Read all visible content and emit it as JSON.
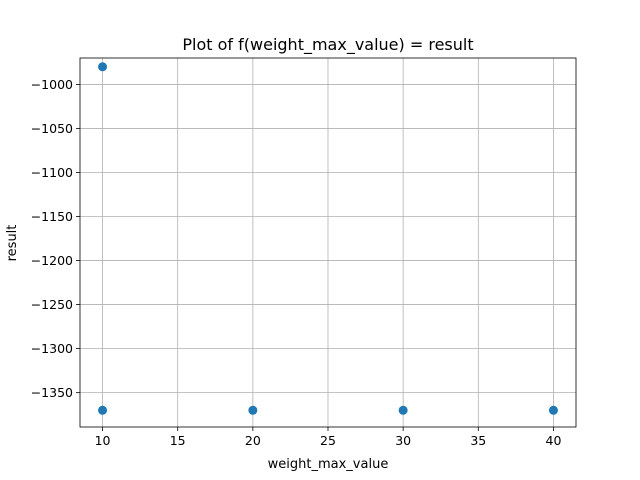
{
  "chart_data": {
    "type": "scatter",
    "title": "Plot of f(weight_max_value) = result",
    "xlabel": "weight_max_value",
    "ylabel": "result",
    "xlim": [
      8.5,
      41.5
    ],
    "ylim": [
      -1389,
      -970
    ],
    "xticks": [
      10,
      15,
      20,
      25,
      30,
      35,
      40
    ],
    "yticks": [
      -1000,
      -1050,
      -1100,
      -1150,
      -1200,
      -1250,
      -1300,
      -1350
    ],
    "ytick_labels": [
      "−1000",
      "−1050",
      "−1100",
      "−1150",
      "−1200",
      "−1250",
      "−1300",
      "−1350"
    ],
    "grid": true,
    "marker_color": "#1f77b4",
    "x": [
      10,
      10,
      20,
      30,
      40
    ],
    "y": [
      -980,
      -1370,
      -1370,
      -1370,
      -1370
    ]
  }
}
